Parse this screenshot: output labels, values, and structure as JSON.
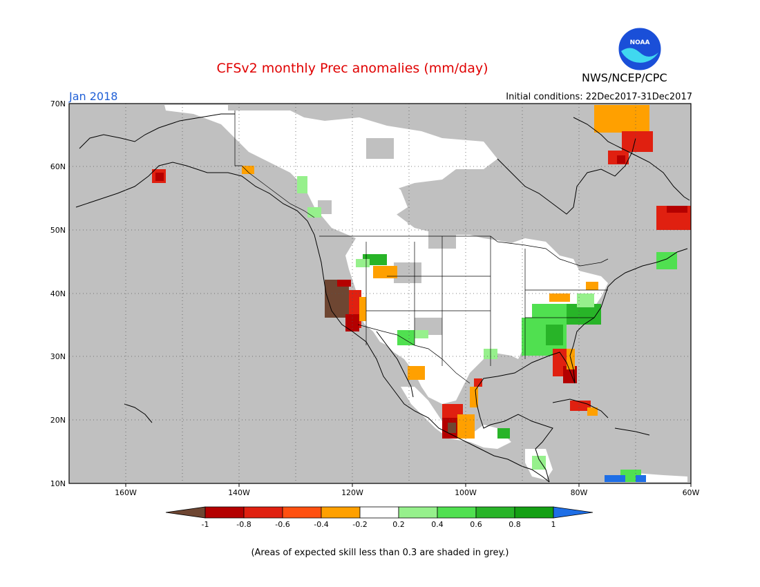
{
  "title": "CFSv2 monthly Prec anomalies (mm/day)",
  "valid_month": "Jan 2018",
  "initial_conditions": "Initial conditions: 22Dec2017-31Dec2017",
  "agency": "NWS/NCEP/CPC",
  "logo_text": "NOAA",
  "footnote": "(Areas of expected skill less than 0.3 are shaded in grey.)",
  "map": {
    "lon_range": [
      -170,
      -60
    ],
    "lat_range": [
      10,
      70
    ],
    "lon_ticks": [
      "160W",
      "140W",
      "120W",
      "100W",
      "80W",
      "60W"
    ],
    "lat_ticks": [
      "10N",
      "20N",
      "30N",
      "40N",
      "50N",
      "60N",
      "70N"
    ],
    "low_skill_color": "#c0c0c0",
    "grid": true
  },
  "colorbar": {
    "tick_labels": [
      "-1",
      "-0.8",
      "-0.6",
      "-0.4",
      "-0.2",
      "0.2",
      "0.4",
      "0.6",
      "0.8",
      "1"
    ],
    "colors": [
      "#6e4632",
      "#b40000",
      "#e02010",
      "#ff5010",
      "#ffa000",
      "#ffffff",
      "#96f08c",
      "#50e050",
      "#28b428",
      "#14a014",
      "#1e6ee6"
    ]
  }
}
